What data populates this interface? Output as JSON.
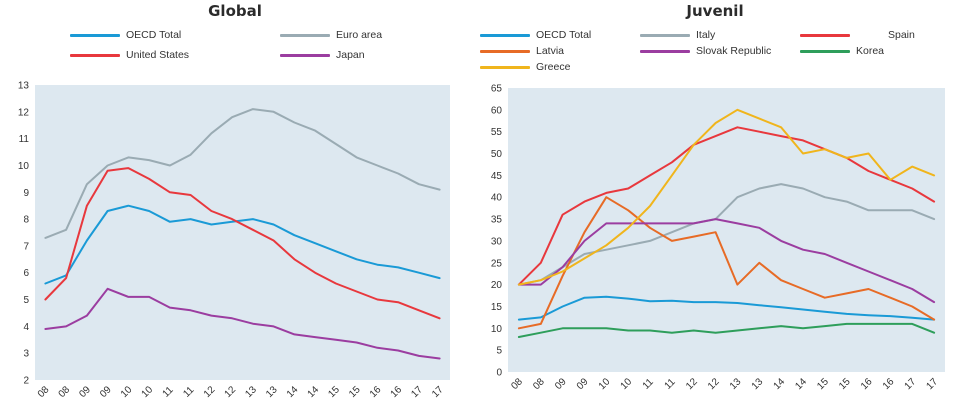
{
  "chart_data": [
    {
      "type": "line",
      "title": "Global",
      "ylim": [
        2,
        13
      ],
      "yticks": [
        2,
        3,
        4,
        5,
        6,
        7,
        8,
        9,
        10,
        11,
        12,
        13
      ],
      "xticks": [
        "08",
        "08",
        "09",
        "09",
        "10",
        "10",
        "11",
        "11",
        "12",
        "12",
        "13",
        "13",
        "14",
        "14",
        "15",
        "15",
        "16",
        "16",
        "17",
        "17"
      ],
      "grid": false,
      "legend_position": "top",
      "series": [
        {
          "name": "OECD Total",
          "color": "#1a9ad6",
          "x": [
            0,
            1,
            2,
            3,
            4,
            5,
            6,
            7,
            8,
            9,
            10,
            11,
            12,
            13,
            14,
            15,
            16,
            17,
            18,
            19
          ],
          "y": [
            5.6,
            5.9,
            7.2,
            8.3,
            8.5,
            8.3,
            7.9,
            8.0,
            7.8,
            7.9,
            8.0,
            7.8,
            7.4,
            7.1,
            6.8,
            6.5,
            6.3,
            6.2,
            6.0,
            5.8
          ]
        },
        {
          "name": "Euro area",
          "color": "#9aabb3",
          "x": [
            0,
            1,
            2,
            3,
            4,
            5,
            6,
            7,
            8,
            9,
            10,
            11,
            12,
            13,
            14,
            15,
            16,
            17,
            18,
            19
          ],
          "y": [
            7.3,
            7.6,
            9.3,
            10.0,
            10.3,
            10.2,
            10.0,
            10.4,
            11.2,
            11.8,
            12.1,
            12.0,
            11.6,
            11.3,
            10.8,
            10.3,
            10.0,
            9.7,
            9.3,
            9.1
          ]
        },
        {
          "name": "United States",
          "color": "#e8383d",
          "x": [
            0,
            1,
            2,
            3,
            4,
            5,
            6,
            7,
            8,
            9,
            10,
            11,
            12,
            13,
            14,
            15,
            16,
            17,
            18,
            19
          ],
          "y": [
            5.0,
            5.8,
            8.5,
            9.8,
            9.9,
            9.5,
            9.0,
            8.9,
            8.3,
            8.0,
            7.6,
            7.2,
            6.5,
            6.0,
            5.6,
            5.3,
            5.0,
            4.9,
            4.6,
            4.3
          ]
        },
        {
          "name": "Japan",
          "color": "#9b3da0",
          "x": [
            0,
            1,
            2,
            3,
            4,
            5,
            6,
            7,
            8,
            9,
            10,
            11,
            12,
            13,
            14,
            15,
            16,
            17,
            18,
            19
          ],
          "y": [
            3.9,
            4.0,
            4.4,
            5.4,
            5.1,
            5.1,
            4.7,
            4.6,
            4.4,
            4.3,
            4.1,
            4.0,
            3.7,
            3.6,
            3.5,
            3.4,
            3.2,
            3.1,
            2.9,
            2.8
          ]
        }
      ]
    },
    {
      "type": "line",
      "title": "Juvenil",
      "ylim": [
        0,
        65
      ],
      "yticks": [
        0,
        5,
        10,
        15,
        20,
        25,
        30,
        35,
        40,
        45,
        50,
        55,
        60,
        65
      ],
      "xticks": [
        "08",
        "08",
        "09",
        "09",
        "10",
        "10",
        "11",
        "11",
        "12",
        "12",
        "13",
        "13",
        "14",
        "14",
        "15",
        "15",
        "16",
        "16",
        "17",
        "17"
      ],
      "grid": false,
      "legend_position": "top",
      "series": [
        {
          "name": "OECD Total",
          "color": "#1a9ad6",
          "x": [
            0,
            1,
            2,
            3,
            4,
            5,
            6,
            7,
            8,
            9,
            10,
            11,
            12,
            13,
            14,
            15,
            16,
            17,
            18,
            19
          ],
          "y": [
            12,
            12.5,
            15,
            17,
            17.2,
            16.8,
            16.2,
            16.3,
            16,
            16,
            15.8,
            15.3,
            14.8,
            14.3,
            13.8,
            13.3,
            13,
            12.8,
            12.4,
            12
          ]
        },
        {
          "name": "Italy",
          "color": "#9aabb3",
          "x": [
            0,
            1,
            2,
            3,
            4,
            5,
            6,
            7,
            8,
            9,
            10,
            11,
            12,
            13,
            14,
            15,
            16,
            17,
            18,
            19
          ],
          "y": [
            20,
            21,
            24,
            27,
            28,
            29,
            30,
            32,
            34,
            35,
            40,
            42,
            43,
            42,
            40,
            39,
            37,
            37,
            37,
            35
          ]
        },
        {
          "name": "Spain",
          "color": "#e8383d",
          "x": [
            0,
            1,
            2,
            3,
            4,
            5,
            6,
            7,
            8,
            9,
            10,
            11,
            12,
            13,
            14,
            15,
            16,
            17,
            18,
            19
          ],
          "y": [
            20,
            25,
            36,
            39,
            41,
            42,
            45,
            48,
            52,
            54,
            56,
            55,
            54,
            53,
            51,
            49,
            46,
            44,
            42,
            39
          ]
        },
        {
          "name": "Latvia",
          "color": "#e76b26",
          "x": [
            0,
            1,
            2,
            3,
            4,
            5,
            6,
            7,
            8,
            9,
            10,
            11,
            12,
            13,
            14,
            15,
            16,
            17,
            18,
            19
          ],
          "y": [
            10,
            11,
            22,
            32,
            40,
            37,
            33,
            30,
            31,
            32,
            20,
            25,
            21,
            19,
            17,
            18,
            19,
            17,
            15,
            12
          ]
        },
        {
          "name": "Slovak Republic",
          "color": "#9b3da0",
          "x": [
            0,
            1,
            2,
            3,
            4,
            5,
            6,
            7,
            8,
            9,
            10,
            11,
            12,
            13,
            14,
            15,
            16,
            17,
            18,
            19
          ],
          "y": [
            20,
            20,
            24,
            30,
            34,
            34,
            34,
            34,
            34,
            35,
            34,
            33,
            30,
            28,
            27,
            25,
            23,
            21,
            19,
            16
          ]
        },
        {
          "name": "Korea",
          "color": "#2e9e5b",
          "x": [
            0,
            1,
            2,
            3,
            4,
            5,
            6,
            7,
            8,
            9,
            10,
            11,
            12,
            13,
            14,
            15,
            16,
            17,
            18,
            19
          ],
          "y": [
            8,
            9,
            10,
            10,
            10,
            9.5,
            9.5,
            9,
            9.5,
            9,
            9.5,
            10,
            10.5,
            10,
            10.5,
            11,
            11,
            11,
            11,
            9
          ]
        },
        {
          "name": "Greece",
          "color": "#f0b51c",
          "x": [
            0,
            1,
            2,
            3,
            4,
            5,
            6,
            7,
            8,
            9,
            10,
            11,
            12,
            13,
            14,
            15,
            16,
            17,
            18,
            19
          ],
          "y": [
            20,
            21,
            23,
            26,
            29,
            33,
            38,
            45,
            52,
            57,
            60,
            58,
            56,
            50,
            51,
            49,
            50,
            44,
            47,
            45
          ]
        }
      ]
    }
  ]
}
